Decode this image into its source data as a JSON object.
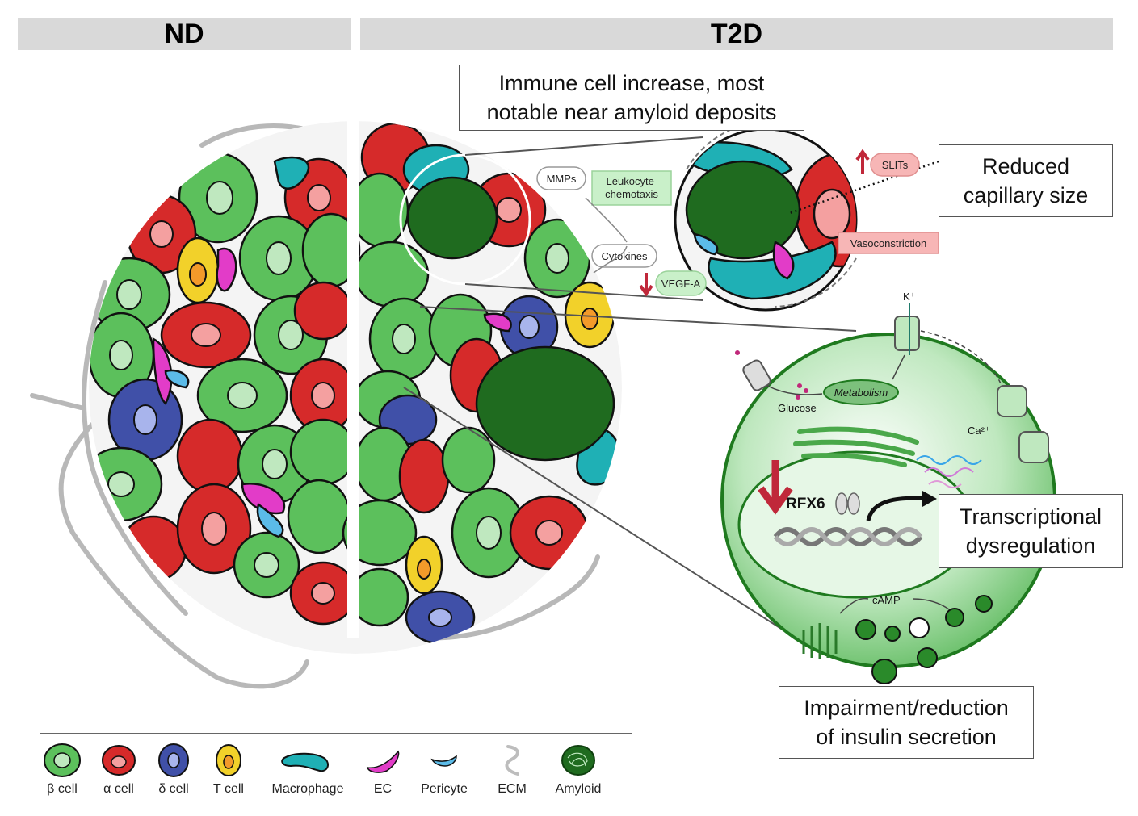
{
  "headers": {
    "left": "ND",
    "right": "T2D"
  },
  "callouts": {
    "immune": "Immune cell increase, most\nnotable near amyloid deposits",
    "capillary": "Reduced\ncapillary size",
    "transcription": "Transcriptional\ndysregulation",
    "insulin": "Impairment/reduction\nof insulin secretion"
  },
  "inset_labels": {
    "mmps": "MMPs",
    "leukocyte": "Leukocyte\nchemotaxis",
    "slits": "SLITs",
    "vasoconstriction": "Vasoconstriction",
    "cytokines": "Cytokines",
    "vegfa": "VEGF-A"
  },
  "beta_cell_labels": {
    "k": "K⁺",
    "glucose": "Glucose",
    "metabolism": "Metabolism",
    "ca": "Ca²⁺",
    "rfx6": "RFX6",
    "camp": "cAMP"
  },
  "legend": [
    {
      "label": "β cell",
      "fill": "#5cc05c",
      "icon": "beta-cell-icon"
    },
    {
      "label": "α cell",
      "fill": "#d62a2a",
      "icon": "alpha-cell-icon"
    },
    {
      "label": "δ cell",
      "fill": "#4050a8",
      "icon": "delta-cell-icon"
    },
    {
      "label": "T cell",
      "fill": "#f2d12a",
      "icon": "t-cell-icon"
    },
    {
      "label": "Macrophage",
      "fill": "#1fb0b5",
      "icon": "macrophage-icon"
    },
    {
      "label": "EC",
      "fill": "#e23cc8",
      "icon": "ec-icon"
    },
    {
      "label": "Pericyte",
      "fill": "#5bbbe8",
      "icon": "pericyte-icon"
    },
    {
      "label": "ECM",
      "fill": "#bdbdbd",
      "icon": "ecm-icon"
    },
    {
      "label": "Amyloid",
      "fill": "#1f6b1f",
      "icon": "amyloid-icon"
    }
  ]
}
